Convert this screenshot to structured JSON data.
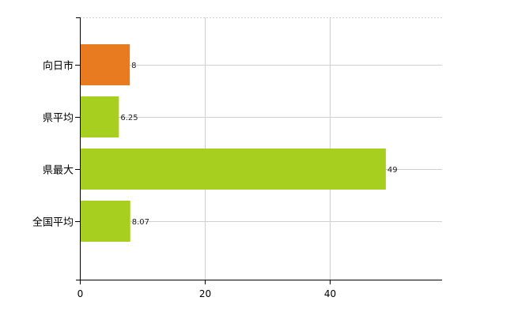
{
  "chart_data": {
    "type": "bar",
    "orientation": "horizontal",
    "categories": [
      "向日市",
      "県平均",
      "県最大",
      "全国平均"
    ],
    "values": [
      8,
      6.25,
      49,
      8.07
    ],
    "data_labels": [
      "8",
      "6.25",
      "49",
      "8.07"
    ],
    "bar_colors": [
      "#e87b1f",
      "#a6cf1f",
      "#a6cf1f",
      "#a6cf1f"
    ],
    "xlim": [
      0,
      58
    ],
    "xticks": [
      0,
      20,
      40
    ],
    "grid": true,
    "title": "",
    "xlabel": "",
    "ylabel": ""
  }
}
